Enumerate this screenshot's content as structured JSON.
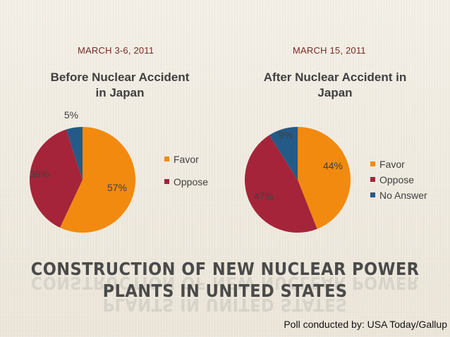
{
  "chart_data": [
    {
      "type": "pie",
      "date": "MARCH 3-6, 2011",
      "title": "Before Nuclear Accident in Japan",
      "title_lines": [
        "Before Nuclear Accident",
        "in Japan"
      ],
      "series": [
        {
          "name": "Favor",
          "value": 57,
          "label": "57%",
          "color": "#f28a0f"
        },
        {
          "name": "Oppose",
          "value": 38,
          "label": "38%",
          "color": "#a5243a"
        },
        {
          "name": "No Answer",
          "value": 5,
          "label": "5%",
          "color": "#245a87"
        }
      ],
      "legend": [
        "Favor",
        "Oppose"
      ],
      "legend_placement": "right"
    },
    {
      "type": "pie",
      "date": "MARCH 15, 2011",
      "title": "After Nuclear Accident in Japan",
      "title_lines": [
        "After Nuclear Accident in",
        "Japan"
      ],
      "series": [
        {
          "name": "Favor",
          "value": 44,
          "label": "44%",
          "color": "#f28a0f"
        },
        {
          "name": "Oppose",
          "value": 47,
          "label": "47%",
          "color": "#a5243a"
        },
        {
          "name": "No Answer",
          "value": 9,
          "label": "9%",
          "color": "#245a87"
        }
      ],
      "legend": [
        "Favor",
        "Oppose",
        "No Answer"
      ],
      "legend_placement": "right"
    }
  ],
  "heading_lines": [
    "CONSTRUCTION OF NEW NUCLEAR POWER",
    "PLANTS IN UNITED STATES"
  ],
  "source": "Poll conducted by: USA Today/Gallup"
}
